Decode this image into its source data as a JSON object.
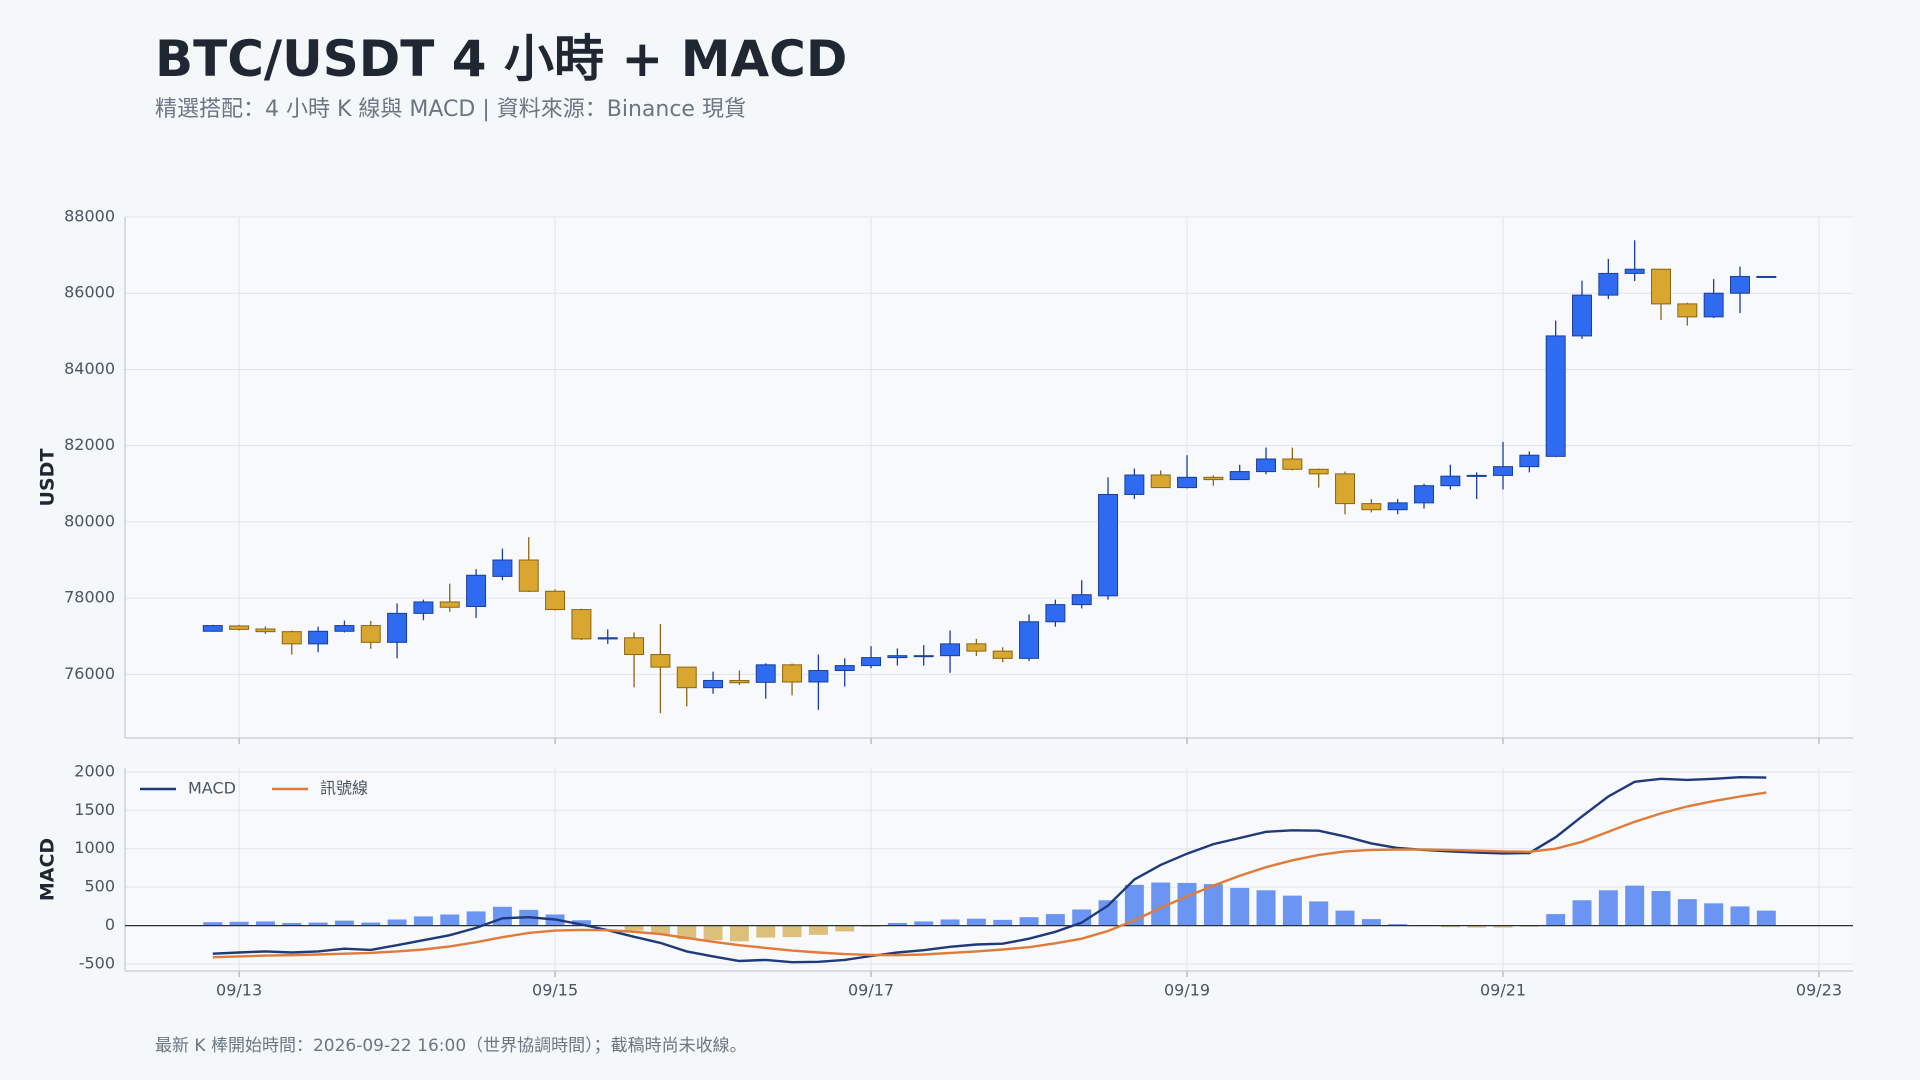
{
  "title": "BTC/USDT 4 小時 + MACD",
  "subtitle": "精選搭配：4 小時 K 線與 MACD | 資料來源：Binance 現貨",
  "note": "最新 K 棒開始時間：2026-09-22 16:00（世界協調時間）；截稿時尚未收線。",
  "chart_data": [
    {
      "type": "candlestick",
      "y_label": "USDT",
      "up_color": "#2f6bf0",
      "up_edge": "#1a3f9c",
      "down_color": "#d9a630",
      "down_edge": "#8a6512",
      "grid": true,
      "x": [
        "2026-09-12T20:00",
        "2026-09-13T00:00",
        "2026-09-13T04:00",
        "2026-09-13T08:00",
        "2026-09-13T12:00",
        "2026-09-13T16:00",
        "2026-09-13T20:00",
        "2026-09-14T00:00",
        "2026-09-14T04:00",
        "2026-09-14T08:00",
        "2026-09-14T12:00",
        "2026-09-14T16:00",
        "2026-09-14T20:00",
        "2026-09-15T00:00",
        "2026-09-15T04:00",
        "2026-09-15T08:00",
        "2026-09-15T12:00",
        "2026-09-15T16:00",
        "2026-09-15T20:00",
        "2026-09-16T00:00",
        "2026-09-16T04:00",
        "2026-09-16T08:00",
        "2026-09-16T12:00",
        "2026-09-16T16:00",
        "2026-09-16T20:00",
        "2026-09-17T00:00",
        "2026-09-17T04:00",
        "2026-09-17T08:00",
        "2026-09-17T12:00",
        "2026-09-17T16:00",
        "2026-09-17T20:00",
        "2026-09-18T00:00",
        "2026-09-18T04:00",
        "2026-09-18T08:00",
        "2026-09-18T12:00",
        "2026-09-18T16:00",
        "2026-09-18T20:00",
        "2026-09-19T00:00",
        "2026-09-19T04:00",
        "2026-09-19T08:00",
        "2026-09-19T12:00",
        "2026-09-19T16:00",
        "2026-09-19T20:00",
        "2026-09-20T00:00",
        "2026-09-20T04:00",
        "2026-09-20T08:00",
        "2026-09-20T12:00",
        "2026-09-20T16:00",
        "2026-09-20T20:00",
        "2026-09-21T00:00",
        "2026-09-21T04:00",
        "2026-09-21T08:00",
        "2026-09-21T12:00",
        "2026-09-21T16:00",
        "2026-09-21T20:00",
        "2026-09-22T00:00",
        "2026-09-22T04:00",
        "2026-09-22T08:00",
        "2026-09-22T12:00",
        "2026-09-22T16:00"
      ],
      "open": [
        77130,
        77270,
        77190,
        77120,
        76800,
        77130,
        77280,
        76840,
        77600,
        77900,
        77780,
        78570,
        79000,
        78180,
        77700,
        76930,
        76960,
        76520,
        76190,
        75650,
        75840,
        75790,
        76250,
        75800,
        76100,
        76230,
        76440,
        76490,
        76490,
        76800,
        76610,
        76420,
        77380,
        77830,
        78060,
        80720,
        81230,
        80900,
        81170,
        81110,
        81320,
        81650,
        81380,
        81260,
        80480,
        80320,
        80500,
        80950,
        81200,
        81220,
        81450,
        81720,
        84880,
        85950,
        86520,
        86630,
        85720,
        85380,
        86000,
        86440
      ],
      "high": [
        77300,
        77300,
        77260,
        77150,
        77250,
        77410,
        77400,
        77860,
        77960,
        78380,
        78760,
        79300,
        79600,
        78230,
        77720,
        77180,
        77100,
        77320,
        76200,
        76070,
        76100,
        76290,
        76280,
        76520,
        76420,
        76740,
        76680,
        76770,
        77150,
        76930,
        76710,
        77570,
        77960,
        78470,
        81170,
        81400,
        81350,
        81750,
        81220,
        81500,
        81950,
        81950,
        81400,
        81320,
        80600,
        80600,
        81000,
        81500,
        81300,
        82100,
        81850,
        85280,
        86330,
        86900,
        87390,
        86630,
        85750,
        86370,
        86700,
        86450
      ],
      "low": [
        77120,
        77150,
        77060,
        76520,
        76580,
        77100,
        76670,
        76420,
        77420,
        77640,
        77480,
        78470,
        78160,
        77680,
        76900,
        76800,
        75660,
        74980,
        75160,
        75490,
        75720,
        75360,
        75450,
        75070,
        75680,
        76160,
        76230,
        76230,
        76040,
        76480,
        76320,
        76350,
        77250,
        77730,
        77960,
        80600,
        80900,
        80880,
        80950,
        81100,
        81250,
        81350,
        80900,
        80200,
        80250,
        80200,
        80350,
        80850,
        80600,
        80850,
        81300,
        81700,
        84800,
        85850,
        86320,
        85300,
        85150,
        85350,
        85480,
        86430
      ],
      "close": [
        77280,
        77180,
        77120,
        76800,
        77130,
        77280,
        76840,
        77600,
        77900,
        77760,
        78600,
        79000,
        78180,
        77700,
        76930,
        76960,
        76520,
        76190,
        75650,
        75840,
        75780,
        76250,
        75800,
        76100,
        76230,
        76440,
        76490,
        76490,
        76800,
        76610,
        76420,
        77380,
        77830,
        78090,
        80720,
        81230,
        80900,
        81170,
        81110,
        81320,
        81650,
        81380,
        81260,
        80480,
        80320,
        80500,
        80950,
        81200,
        81220,
        81450,
        81750,
        84880,
        85950,
        86520,
        86630,
        85720,
        85380,
        86000,
        86440,
        86440
      ],
      "xlim": [
        "2026-09-12T06:40",
        "2026-09-23T05:10"
      ],
      "xticks": [
        "2026-09-13T00:00",
        "2026-09-15T00:00",
        "2026-09-17T00:00",
        "2026-09-19T00:00",
        "2026-09-21T00:00",
        "2026-09-23T00:00"
      ],
      "ylim": [
        74330,
        88000
      ],
      "yticks": [
        76000,
        78000,
        80000,
        82000,
        84000,
        86000,
        88000
      ]
    },
    {
      "type": "macd",
      "y_label": "MACD",
      "grid": true,
      "legend": "upper left",
      "x": [
        "2026-09-12T20:00",
        "2026-09-13T00:00",
        "2026-09-13T04:00",
        "2026-09-13T08:00",
        "2026-09-13T12:00",
        "2026-09-13T16:00",
        "2026-09-13T20:00",
        "2026-09-14T00:00",
        "2026-09-14T04:00",
        "2026-09-14T08:00",
        "2026-09-14T12:00",
        "2026-09-14T16:00",
        "2026-09-14T20:00",
        "2026-09-15T00:00",
        "2026-09-15T04:00",
        "2026-09-15T08:00",
        "2026-09-15T12:00",
        "2026-09-15T16:00",
        "2026-09-15T20:00",
        "2026-09-16T00:00",
        "2026-09-16T04:00",
        "2026-09-16T08:00",
        "2026-09-16T12:00",
        "2026-09-16T16:00",
        "2026-09-16T20:00",
        "2026-09-17T00:00",
        "2026-09-17T04:00",
        "2026-09-17T08:00",
        "2026-09-17T12:00",
        "2026-09-17T16:00",
        "2026-09-17T20:00",
        "2026-09-18T00:00",
        "2026-09-18T04:00",
        "2026-09-18T08:00",
        "2026-09-18T12:00",
        "2026-09-18T16:00",
        "2026-09-18T20:00",
        "2026-09-19T00:00",
        "2026-09-19T04:00",
        "2026-09-19T08:00",
        "2026-09-19T12:00",
        "2026-09-19T16:00",
        "2026-09-19T20:00",
        "2026-09-20T00:00",
        "2026-09-20T04:00",
        "2026-09-20T08:00",
        "2026-09-20T12:00",
        "2026-09-20T16:00",
        "2026-09-20T20:00",
        "2026-09-21T00:00",
        "2026-09-21T04:00",
        "2026-09-21T08:00",
        "2026-09-21T12:00",
        "2026-09-21T16:00",
        "2026-09-21T20:00",
        "2026-09-22T00:00",
        "2026-09-22T04:00",
        "2026-09-22T08:00",
        "2026-09-22T12:00",
        "2026-09-22T16:00"
      ],
      "series": [
        {
          "name": "MACD",
          "color": "#1f3a7a",
          "values": [
            -365,
            -350,
            -335,
            -350,
            -335,
            -300,
            -315,
            -255,
            -190,
            -125,
            -30,
            95,
            110,
            80,
            15,
            -60,
            -145,
            -225,
            -335,
            -400,
            -460,
            -445,
            -475,
            -470,
            -445,
            -395,
            -350,
            -320,
            -275,
            -245,
            -235,
            -170,
            -80,
            40,
            260,
            600,
            790,
            935,
            1060,
            1140,
            1220,
            1240,
            1235,
            1160,
            1070,
            1010,
            985,
            965,
            950,
            940,
            945,
            1150,
            1420,
            1680,
            1870,
            1910,
            1895,
            1910,
            1930,
            1925
          ]
        },
        {
          "name": "訊號線",
          "color": "#e07b39",
          "values": [
            -410,
            -400,
            -390,
            -385,
            -375,
            -365,
            -355,
            -335,
            -310,
            -270,
            -215,
            -150,
            -95,
            -65,
            -55,
            -60,
            -80,
            -110,
            -160,
            -210,
            -255,
            -290,
            -325,
            -350,
            -370,
            -380,
            -385,
            -375,
            -355,
            -335,
            -310,
            -280,
            -230,
            -170,
            -70,
            70,
            230,
            380,
            520,
            650,
            760,
            850,
            920,
            965,
            985,
            990,
            990,
            985,
            975,
            965,
            960,
            1000,
            1090,
            1220,
            1350,
            1460,
            1550,
            1620,
            1680,
            1730
          ]
        }
      ],
      "histogram": {
        "up_color": "#6b95f2",
        "down_color": "#dcc07a",
        "values": [
          45,
          50,
          55,
          35,
          40,
          65,
          40,
          80,
          120,
          145,
          185,
          245,
          205,
          145,
          70,
          0,
          -65,
          -115,
          -175,
          -190,
          -205,
          -155,
          -150,
          -120,
          -75,
          -15,
          35,
          55,
          80,
          90,
          75,
          110,
          150,
          210,
          330,
          530,
          560,
          555,
          540,
          490,
          460,
          390,
          315,
          195,
          85,
          20,
          -5,
          -20,
          -25,
          -25,
          -15,
          150,
          330,
          460,
          520,
          450,
          345,
          290,
          250,
          195
        ]
      },
      "xlim": [
        "2026-09-12T06:40",
        "2026-09-23T05:10"
      ],
      "xticks": [
        {
          "value": "2026-09-13T00:00",
          "label": "09/13"
        },
        {
          "value": "2026-09-15T00:00",
          "label": "09/15"
        },
        {
          "value": "2026-09-17T00:00",
          "label": "09/17"
        },
        {
          "value": "2026-09-19T00:00",
          "label": "09/19"
        },
        {
          "value": "2026-09-21T00:00",
          "label": "09/21"
        },
        {
          "value": "2026-09-23T00:00",
          "label": "09/23"
        }
      ],
      "ylim": [
        -590,
        2050
      ],
      "yticks": [
        -500,
        0,
        500,
        1000,
        1500,
        2000
      ]
    }
  ]
}
